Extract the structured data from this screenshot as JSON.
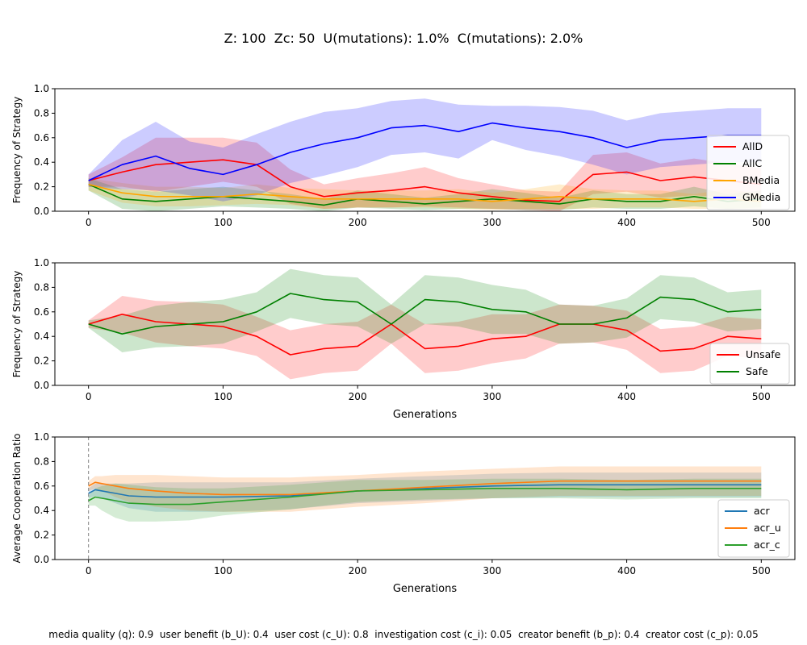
{
  "suptitle": "Z: 100  Zc: 50  U(mutations): 1.0%  C(mutations): 2.0%",
  "footer": "media quality (q): 0.9  user benefit (b_U): 0.4  user cost (c_U): 0.8  investigation cost (c_i): 0.05  creator benefit (b_p): 0.4  creator cost (c_p): 0.05",
  "chart_data": [
    {
      "type": "line",
      "ylabel": "Frequency of Strategy",
      "xlabel": "",
      "xlim": [
        -25,
        525
      ],
      "ylim": [
        0,
        1
      ],
      "xticks": [
        0,
        100,
        200,
        300,
        400,
        500
      ],
      "yticks": [
        0.0,
        0.2,
        0.4,
        0.6,
        0.8,
        1.0
      ],
      "legend_position": "center-right",
      "shaded_band": "mean ± std",
      "x": [
        0,
        25,
        50,
        75,
        100,
        125,
        150,
        175,
        200,
        225,
        250,
        275,
        300,
        325,
        350,
        375,
        400,
        425,
        450,
        475,
        500
      ],
      "series": [
        {
          "name": "AllD",
          "color": "#ff0000",
          "values": [
            0.25,
            0.32,
            0.38,
            0.4,
            0.42,
            0.38,
            0.2,
            0.12,
            0.15,
            0.17,
            0.2,
            0.15,
            0.12,
            0.09,
            0.08,
            0.3,
            0.32,
            0.25,
            0.28,
            0.25,
            0.22
          ],
          "std": [
            0.05,
            0.12,
            0.22,
            0.2,
            0.18,
            0.18,
            0.14,
            0.1,
            0.12,
            0.14,
            0.16,
            0.12,
            0.1,
            0.08,
            0.08,
            0.16,
            0.16,
            0.14,
            0.15,
            0.14,
            0.13
          ]
        },
        {
          "name": "AllC",
          "color": "#008000",
          "values": [
            0.22,
            0.1,
            0.08,
            0.1,
            0.12,
            0.1,
            0.08,
            0.05,
            0.1,
            0.08,
            0.06,
            0.08,
            0.1,
            0.08,
            0.06,
            0.1,
            0.08,
            0.08,
            0.12,
            0.08,
            0.1
          ],
          "std": [
            0.05,
            0.08,
            0.08,
            0.08,
            0.08,
            0.07,
            0.06,
            0.05,
            0.07,
            0.06,
            0.05,
            0.06,
            0.08,
            0.07,
            0.05,
            0.07,
            0.06,
            0.06,
            0.08,
            0.06,
            0.07
          ]
        },
        {
          "name": "BMedia",
          "color": "#ffa500",
          "values": [
            0.22,
            0.15,
            0.12,
            0.12,
            0.12,
            0.14,
            0.12,
            0.1,
            0.1,
            0.1,
            0.1,
            0.1,
            0.08,
            0.1,
            0.12,
            0.1,
            0.1,
            0.1,
            0.08,
            0.1,
            0.08
          ],
          "std": [
            0.05,
            0.08,
            0.08,
            0.08,
            0.07,
            0.08,
            0.07,
            0.08,
            0.07,
            0.07,
            0.07,
            0.08,
            0.07,
            0.08,
            0.1,
            0.08,
            0.07,
            0.07,
            0.06,
            0.08,
            0.06
          ]
        },
        {
          "name": "GMedia",
          "color": "#0000ff",
          "values": [
            0.25,
            0.38,
            0.45,
            0.35,
            0.3,
            0.38,
            0.48,
            0.55,
            0.6,
            0.68,
            0.7,
            0.65,
            0.72,
            0.68,
            0.65,
            0.6,
            0.52,
            0.58,
            0.6,
            0.62,
            0.62
          ],
          "std": [
            0.05,
            0.2,
            0.28,
            0.22,
            0.22,
            0.25,
            0.25,
            0.26,
            0.24,
            0.22,
            0.22,
            0.22,
            0.14,
            0.18,
            0.2,
            0.22,
            0.22,
            0.22,
            0.22,
            0.22,
            0.22
          ]
        }
      ]
    },
    {
      "type": "line",
      "ylabel": "Frequency of Strategy",
      "xlabel": "Generations",
      "xlim": [
        -25,
        525
      ],
      "ylim": [
        0,
        1
      ],
      "xticks": [
        0,
        100,
        200,
        300,
        400,
        500
      ],
      "yticks": [
        0.0,
        0.2,
        0.4,
        0.6,
        0.8,
        1.0
      ],
      "legend_position": "lower-right",
      "shaded_band": "mean ± std",
      "x": [
        0,
        25,
        50,
        75,
        100,
        125,
        150,
        175,
        200,
        225,
        250,
        275,
        300,
        325,
        350,
        375,
        400,
        425,
        450,
        475,
        500
      ],
      "series": [
        {
          "name": "Unsafe",
          "color": "#ff0000",
          "values": [
            0.5,
            0.58,
            0.52,
            0.5,
            0.48,
            0.4,
            0.25,
            0.3,
            0.32,
            0.5,
            0.3,
            0.32,
            0.38,
            0.4,
            0.5,
            0.5,
            0.45,
            0.28,
            0.3,
            0.4,
            0.38
          ],
          "std": [
            0.03,
            0.15,
            0.17,
            0.18,
            0.18,
            0.16,
            0.2,
            0.2,
            0.2,
            0.16,
            0.2,
            0.2,
            0.2,
            0.18,
            0.16,
            0.15,
            0.16,
            0.18,
            0.18,
            0.16,
            0.16
          ]
        },
        {
          "name": "Safe",
          "color": "#008000",
          "values": [
            0.5,
            0.42,
            0.48,
            0.5,
            0.52,
            0.6,
            0.75,
            0.7,
            0.68,
            0.5,
            0.7,
            0.68,
            0.62,
            0.6,
            0.5,
            0.5,
            0.55,
            0.72,
            0.7,
            0.6,
            0.62
          ],
          "std": [
            0.03,
            0.15,
            0.17,
            0.18,
            0.18,
            0.16,
            0.2,
            0.2,
            0.2,
            0.16,
            0.2,
            0.2,
            0.2,
            0.18,
            0.16,
            0.15,
            0.16,
            0.18,
            0.18,
            0.16,
            0.16
          ]
        }
      ]
    },
    {
      "type": "line",
      "ylabel": "Average Cooperation Ratio",
      "xlabel": "Generations",
      "xlim": [
        -25,
        525
      ],
      "ylim": [
        0,
        1
      ],
      "xticks": [
        0,
        100,
        200,
        300,
        400,
        500
      ],
      "yticks": [
        0.0,
        0.2,
        0.4,
        0.6,
        0.8,
        1.0
      ],
      "legend_position": "center-right",
      "shaded_band": "mean ± std",
      "vline_x": 0,
      "x": [
        0,
        5,
        10,
        20,
        30,
        50,
        75,
        100,
        150,
        200,
        250,
        300,
        350,
        400,
        450,
        500
      ],
      "series": [
        {
          "name": "acr",
          "color": "#1f77b4",
          "values": [
            0.54,
            0.57,
            0.56,
            0.54,
            0.52,
            0.51,
            0.51,
            0.51,
            0.52,
            0.56,
            0.58,
            0.6,
            0.61,
            0.61,
            0.61,
            0.61
          ],
          "std": [
            0.04,
            0.05,
            0.06,
            0.08,
            0.1,
            0.12,
            0.12,
            0.12,
            0.11,
            0.1,
            0.1,
            0.1,
            0.1,
            0.1,
            0.1,
            0.1
          ]
        },
        {
          "name": "acr_u",
          "color": "#ff7f0e",
          "values": [
            0.6,
            0.63,
            0.62,
            0.6,
            0.58,
            0.56,
            0.54,
            0.53,
            0.53,
            0.56,
            0.59,
            0.62,
            0.64,
            0.64,
            0.64,
            0.64
          ],
          "std": [
            0.04,
            0.05,
            0.06,
            0.09,
            0.11,
            0.13,
            0.14,
            0.14,
            0.14,
            0.13,
            0.13,
            0.12,
            0.12,
            0.12,
            0.12,
            0.12
          ]
        },
        {
          "name": "acr_c",
          "color": "#2ca02c",
          "values": [
            0.48,
            0.51,
            0.5,
            0.48,
            0.46,
            0.45,
            0.45,
            0.47,
            0.51,
            0.56,
            0.57,
            0.58,
            0.58,
            0.57,
            0.58,
            0.58
          ],
          "std": [
            0.04,
            0.07,
            0.1,
            0.14,
            0.15,
            0.14,
            0.13,
            0.11,
            0.1,
            0.09,
            0.08,
            0.08,
            0.08,
            0.08,
            0.08,
            0.08
          ]
        }
      ]
    }
  ]
}
